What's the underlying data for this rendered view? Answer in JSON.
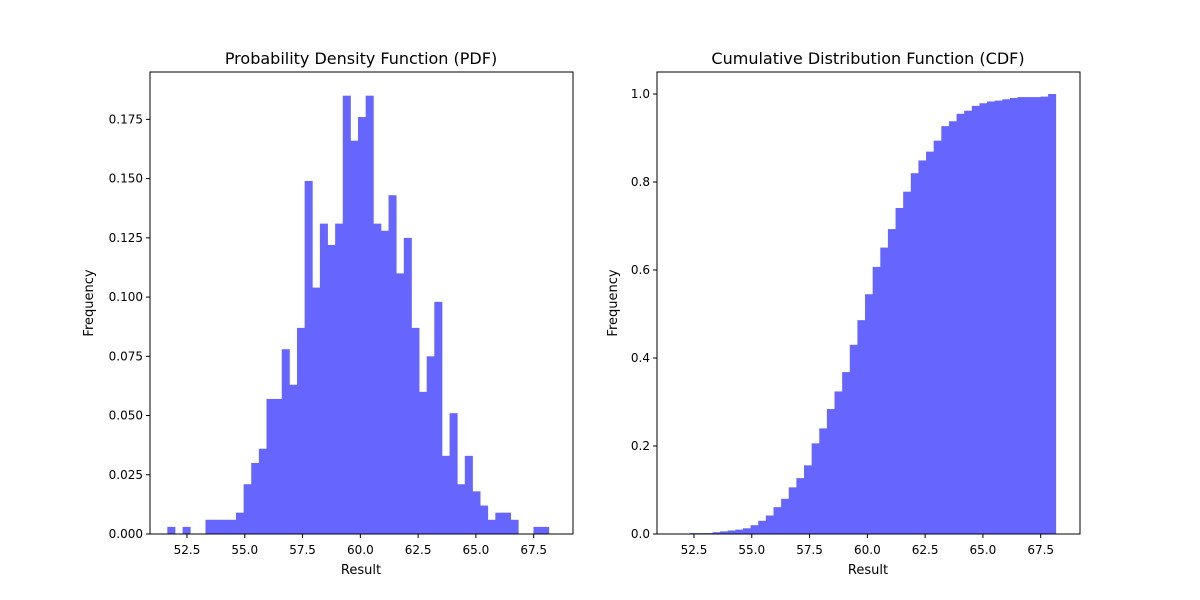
{
  "chart_data": [
    {
      "type": "bar",
      "title": "Probability Density Function (PDF)",
      "xlabel": "Result",
      "ylabel": "Frequency",
      "xlim": [
        50.9,
        69.2
      ],
      "ylim": [
        0,
        0.195
      ],
      "xticks": [
        "52.5",
        "55.0",
        "57.5",
        "60.0",
        "62.5",
        "65.0",
        "67.5"
      ],
      "yticks": [
        "0.000",
        "0.025",
        "0.050",
        "0.075",
        "0.100",
        "0.125",
        "0.150",
        "0.175"
      ],
      "color": "#6666ff",
      "bins": {
        "start": 51.65,
        "width": 0.33,
        "values": [
          0.003,
          0.0,
          0.003,
          0.0,
          0.0,
          0.006,
          0.006,
          0.006,
          0.006,
          0.009,
          0.021,
          0.03,
          0.036,
          0.057,
          0.057,
          0.078,
          0.063,
          0.087,
          0.149,
          0.104,
          0.131,
          0.122,
          0.131,
          0.185,
          0.166,
          0.176,
          0.185,
          0.131,
          0.128,
          0.143,
          0.11,
          0.125,
          0.087,
          0.06,
          0.075,
          0.098,
          0.033,
          0.051,
          0.021,
          0.033,
          0.018,
          0.012,
          0.006,
          0.009,
          0.009,
          0.006,
          0.0,
          0.0,
          0.003,
          0.003
        ]
      }
    },
    {
      "type": "bar",
      "title": "Cumulative Distribution Function (CDF)",
      "xlabel": "Result",
      "ylabel": "Frequency",
      "xlim": [
        50.9,
        69.2
      ],
      "ylim": [
        0,
        1.05
      ],
      "xticks": [
        "52.5",
        "55.0",
        "57.5",
        "60.0",
        "62.5",
        "65.0",
        "67.5"
      ],
      "yticks": [
        "0.0",
        "0.2",
        "0.4",
        "0.6",
        "0.8",
        "1.0"
      ],
      "color": "#6666ff",
      "bins": {
        "start": 51.65,
        "width": 0.33,
        "values": [
          0.001,
          0.001,
          0.002,
          0.002,
          0.002,
          0.004,
          0.006,
          0.008,
          0.01,
          0.013,
          0.02,
          0.03,
          0.042,
          0.061,
          0.08,
          0.106,
          0.127,
          0.156,
          0.206,
          0.24,
          0.284,
          0.324,
          0.368,
          0.43,
          0.486,
          0.545,
          0.607,
          0.651,
          0.693,
          0.741,
          0.778,
          0.82,
          0.849,
          0.869,
          0.894,
          0.927,
          0.938,
          0.955,
          0.962,
          0.973,
          0.979,
          0.983,
          0.985,
          0.988,
          0.991,
          0.993,
          0.993,
          0.993,
          0.994,
          1.0
        ]
      }
    }
  ]
}
